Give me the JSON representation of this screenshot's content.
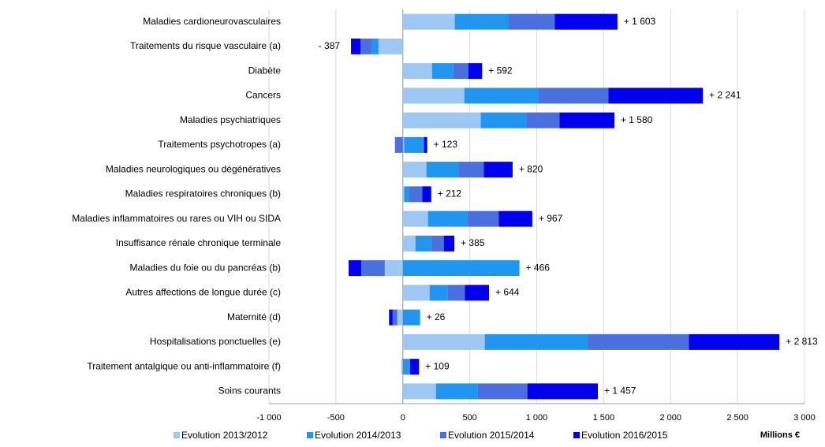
{
  "chart_data": {
    "type": "stacked-hbar",
    "x_label": "Millions €",
    "categories": [
      "Maladies cardioneurovasculaires",
      "Traitements du risque vasculaire (a)",
      "Diabète",
      "Cancers",
      "Maladies psychiatriques",
      "Traitements psychotropes (a)",
      "Maladies neurologiques ou dégénératives",
      "Maladies respiratoires chroniques (b)",
      "Maladies inflammatoires ou rares ou VIH ou SIDA",
      "Insuffisance rénale chronique terminale",
      "Maladies du foie ou du pancréas (b)",
      "Autres affections de longue durée (c)",
      "Maternité (d)",
      "Hospitalisations ponctuelles (e)",
      "Traitement antalgique ou anti-inflammatoire (f)",
      "Soins courants"
    ],
    "series": [
      {
        "name": "Evolution 2013/2012",
        "color": "#9dc8f4",
        "values": [
          388,
          -182,
          218,
          459,
          582,
          10,
          176,
          10,
          188,
          94,
          -135,
          200,
          -41,
          612,
          -12,
          247
        ]
      },
      {
        "name": "Evolution 2014/2013",
        "color": "#2196f0",
        "values": [
          400,
          -47,
          159,
          553,
          341,
          148,
          241,
          35,
          294,
          118,
          871,
          135,
          129,
          771,
          47,
          312
        ]
      },
      {
        "name": "Evolution 2015/2014",
        "color": "#4a6fdf",
        "values": [
          347,
          -88,
          112,
          524,
          247,
          -59,
          188,
          100,
          235,
          94,
          -176,
          129,
          -35,
          753,
          6,
          371
        ]
      },
      {
        "name": "Evolution 2016/2015",
        "color": "#0000ee",
        "values": [
          468,
          -70,
          103,
          705,
          410,
          24,
          215,
          67,
          250,
          79,
          -94,
          180,
          -27,
          677,
          68,
          527
        ]
      }
    ],
    "totals": [
      1603,
      -387,
      592,
      2241,
      1580,
      123,
      820,
      212,
      967,
      385,
      466,
      644,
      26,
      2813,
      109,
      1457
    ],
    "total_labels": [
      "+ 1 603",
      "- 387",
      "+ 592",
      "+ 2 241",
      "+ 1 580",
      "+ 123",
      "+ 820",
      "+ 212",
      "+ 967",
      "+ 385",
      "+ 466",
      "+ 644",
      "+ 26",
      "+ 2 813",
      "+ 109",
      "+ 1 457"
    ],
    "xlim": [
      -1000,
      3000
    ],
    "xticks": [
      {
        "value": -1000,
        "label": "-1 000"
      },
      -500,
      0,
      500,
      {
        "value": 1000,
        "label": "1 000"
      },
      {
        "value": 1500,
        "label": "1 500"
      },
      {
        "value": 2000,
        "label": "2 000"
      },
      {
        "value": 2500,
        "label": "2 500"
      },
      {
        "value": 3000,
        "label": "3 000"
      }
    ],
    "grid": true,
    "legend": "bottom"
  }
}
